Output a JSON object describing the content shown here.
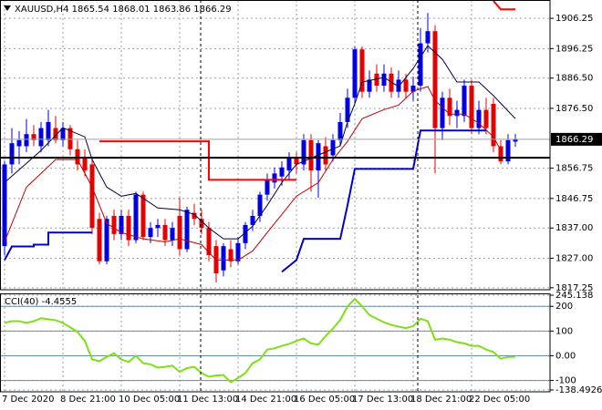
{
  "chart_data": [
    {
      "type": "candlestick",
      "title": "XAUUSD,H4",
      "categories": [
        "7 Dec 2020",
        null,
        null,
        null,
        null,
        null,
        null,
        null,
        "8 Dec 21:00",
        null,
        null,
        null,
        null,
        null,
        null,
        null,
        "10 Dec 05:00",
        null,
        null,
        null,
        null,
        null,
        null,
        null,
        "11 Dec 13:00",
        null,
        null,
        null,
        null,
        null,
        null,
        null,
        "14 Dec 21:00",
        null,
        null,
        null,
        null,
        null,
        null,
        null,
        "16 Dec 05:00",
        null,
        null,
        null,
        null,
        null,
        null,
        null,
        "17 Dec 13:00",
        null,
        null,
        null,
        null,
        null,
        null,
        null,
        "18 Dec 21:00",
        null,
        null,
        null,
        null,
        null,
        null,
        null,
        "22 Dec 05:00",
        null,
        null,
        null,
        null,
        null,
        null
      ],
      "open": [
        1831,
        1858,
        1864,
        1864,
        1868,
        1864,
        1866,
        1870,
        1866,
        1870,
        1863,
        1860,
        1858,
        1840,
        1826,
        1841,
        1835,
        1841,
        1833,
        1848,
        1834,
        1837,
        1838,
        1833,
        1841,
        1830,
        1842,
        1840,
        1837,
        1831,
        1823,
        1830,
        1826,
        1832,
        1838,
        1841,
        1848,
        1852,
        1854,
        1856,
        1860,
        1858,
        1866,
        1856,
        1864,
        1861,
        1866,
        1872,
        1880,
        1896,
        1882,
        1888,
        1884,
        1888,
        1882,
        1886,
        1882,
        1884,
        1898,
        1902,
        1870,
        1880,
        1874,
        1874,
        1884,
        1870,
        1876,
        1878,
        1864,
        1859,
        1865.54
      ],
      "high": [
        1859,
        1870,
        1869,
        1873,
        1871,
        1872,
        1876,
        1874,
        1872,
        1871,
        1866,
        1863,
        1860,
        1842,
        1841,
        1843,
        1843,
        1843,
        1849,
        1849,
        1839,
        1840,
        1840,
        1839,
        1847,
        1844,
        1845,
        1843,
        1839,
        1833,
        1832,
        1833,
        1834,
        1839,
        1843,
        1849,
        1855,
        1857,
        1859,
        1862,
        1862,
        1868,
        1868,
        1866,
        1867,
        1868,
        1875,
        1883,
        1897,
        1897,
        1889,
        1891,
        1891,
        1890,
        1889,
        1888,
        1887,
        1903,
        1908,
        1904,
        1882,
        1883,
        1879,
        1886,
        1886,
        1879,
        1880,
        1880,
        1866,
        1868,
        1868.01
      ],
      "low": [
        1828,
        1855,
        1858,
        1862,
        1864,
        1862,
        1864,
        1865,
        1864,
        1861,
        1856,
        1854,
        1835,
        1825,
        1825,
        1833,
        1833,
        1831,
        1832,
        1833,
        1832,
        1834,
        1831,
        1831,
        1828,
        1829,
        1838,
        1835,
        1826,
        1819,
        1821,
        1824,
        1825,
        1830,
        1836,
        1839,
        1846,
        1850,
        1851,
        1853,
        1855,
        1856,
        1849,
        1847,
        1856,
        1859,
        1864,
        1870,
        1878,
        1880,
        1880,
        1882,
        1882,
        1880,
        1880,
        1880,
        1879,
        1882,
        1895,
        1855,
        1866,
        1871,
        1870,
        1872,
        1868,
        1868,
        1868,
        1862,
        1858,
        1858,
        1863.86
      ],
      "close": [
        1858,
        1865,
        1866,
        1868,
        1866,
        1870,
        1872,
        1866,
        1870,
        1863,
        1858,
        1856,
        1837,
        1826,
        1840,
        1835,
        1841,
        1833,
        1848,
        1834,
        1837,
        1838,
        1833,
        1837,
        1830,
        1843,
        1840,
        1837,
        1828,
        1822,
        1831,
        1826,
        1832,
        1838,
        1841,
        1848,
        1853,
        1855,
        1857,
        1860,
        1858,
        1866,
        1856,
        1865,
        1858,
        1866,
        1872,
        1880,
        1896,
        1882,
        1886,
        1884,
        1888,
        1882,
        1886,
        1882,
        1884,
        1898,
        1902,
        1870,
        1880,
        1874,
        1876,
        1884,
        1870,
        1876,
        1870,
        1864,
        1859,
        1866,
        1866.29
      ],
      "up_color": "#0000e8",
      "down_color": "#e80000",
      "ylim": [
        1816.6,
        1912.3
      ],
      "yticks": [
        1906.25,
        1896.25,
        {
          "value": 1886.5,
          "label": "1886.50"
        },
        {
          "value": 1876.5,
          "label": "1876.50"
        },
        1856.75,
        1846.75,
        {
          "value": 1837,
          "label": "1837.00"
        },
        {
          "value": 1827,
          "label": "1827.00"
        },
        1817.25
      ],
      "grid": true,
      "hline": 1860.2,
      "overlays": [
        {
          "color": "#000040",
          "width": 1,
          "x": [
            0,
            5,
            8,
            11,
            12,
            14,
            16,
            18,
            21,
            24,
            26,
            28,
            30,
            32,
            34,
            36,
            38,
            40,
            43,
            46,
            47,
            48,
            49,
            52,
            54,
            56,
            58,
            60,
            62,
            65,
            67,
            70
          ],
          "values": [
            1852,
            1862.6,
            1870.1,
            1867.1,
            1859.6,
            1850.5,
            1847.5,
            1848.4,
            1843.6,
            1843,
            1841.5,
            1837,
            1833.4,
            1833.4,
            1837.6,
            1844.5,
            1852,
            1858,
            1861.1,
            1864.1,
            1872,
            1878,
            1885.2,
            1886.7,
            1883.7,
            1889.7,
            1897.2,
            1892.7,
            1885.2,
            1885.2,
            1880.7,
            1873.1
          ]
        },
        {
          "color": "#c00000",
          "width": 1,
          "x": [
            0,
            3,
            7,
            10,
            12,
            14,
            16,
            19,
            22,
            24,
            27,
            29,
            32,
            34,
            36,
            38,
            40,
            43,
            45,
            47,
            49,
            52,
            54,
            56,
            58,
            59,
            61,
            63,
            65,
            67,
            68
          ],
          "values": [
            1832.4,
            1850.5,
            1859.6,
            1859.6,
            1850.5,
            1838.5,
            1835.5,
            1833.4,
            1832.4,
            1833.4,
            1831.5,
            1826.4,
            1826.4,
            1829.4,
            1835.5,
            1841.5,
            1847.5,
            1852,
            1859.6,
            1865.6,
            1873.1,
            1876.1,
            1877.6,
            1882.2,
            1883.7,
            1879.1,
            1874.6,
            1874.6,
            1871.6,
            1867.1,
            1862.6
          ]
        },
        {
          "color": "#ff0000",
          "width": 2,
          "x": [
            13,
            28,
            28,
            40,
            41,
            67,
            68,
            70
          ],
          "values": [
            1865.6,
            1865.6,
            1852.9,
            1852.9,
            null,
            1912,
            1909.2,
            1909.2
          ]
        },
        {
          "color": "#0000cc",
          "width": 2,
          "x": [
            0,
            1,
            4,
            4,
            6,
            6,
            12,
            13,
            38,
            40,
            41,
            46,
            47,
            48,
            56,
            57,
            66
          ],
          "values": [
            1826.4,
            1830.9,
            1830.9,
            1831.5,
            1831.5,
            1835.5,
            1835.5,
            null,
            1822.5,
            1826.4,
            1833.4,
            1833.4,
            1844.5,
            1856.5,
            1856.5,
            1869.2,
            1869.2
          ]
        }
      ]
    },
    {
      "type": "line",
      "title": "CCI(40)",
      "color": "#7fe014",
      "values": [
        133,
        140,
        140,
        133,
        140,
        152,
        148,
        144,
        133,
        115,
        96,
        60,
        -15,
        -22,
        -5,
        10,
        -15,
        -25,
        0,
        -30,
        -35,
        -48,
        -45,
        -40,
        -65,
        -50,
        -45,
        -70,
        -85,
        -80,
        -78,
        -107,
        -90,
        -70,
        -30,
        -15,
        25,
        30,
        40,
        48,
        60,
        70,
        50,
        45,
        80,
        110,
        145,
        200,
        230,
        200,
        165,
        150,
        135,
        125,
        118,
        112,
        120,
        150,
        140,
        65,
        70,
        65,
        55,
        50,
        40,
        40,
        25,
        15,
        -12,
        -5,
        -4.4555
      ],
      "ylim": [
        -138.4926,
        245.138
      ],
      "yticks": [
        245.138,
        200,
        100,
        {
          "value": 0,
          "label": "0.00"
        },
        -100,
        -138.4926
      ],
      "grid": true
    }
  ]
}
